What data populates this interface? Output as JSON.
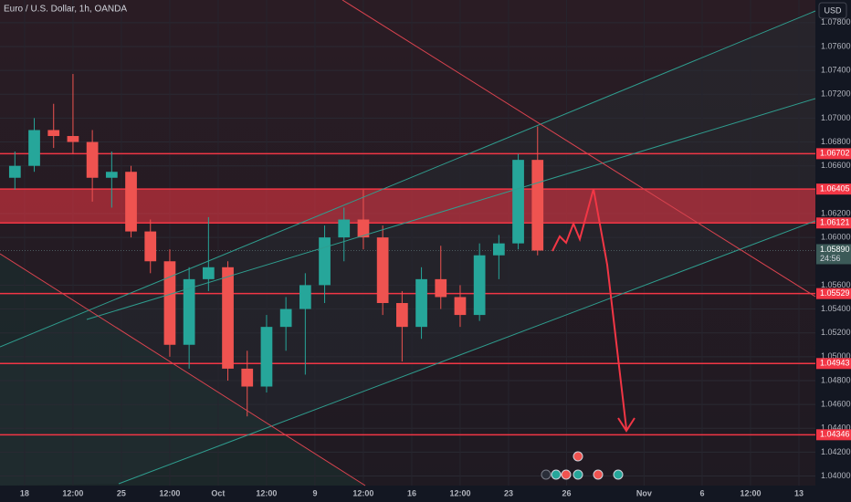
{
  "chart_data": {
    "type": "candlestick",
    "title": "Euro / U.S. Dollar, 1h, OANDA",
    "currency": "USD",
    "x": [
      -0.5,
      0.5,
      1.5,
      2.5,
      3.5,
      4.5,
      5.5,
      6.5,
      7.5,
      8.5,
      9.5,
      10.5,
      11.5,
      12.5,
      13.5,
      14.5,
      15.5,
      16.5,
      17.5,
      18.5,
      19.5,
      20.5,
      21.5,
      22.5,
      23.5,
      24.5,
      25.5,
      26.5
    ],
    "open": [
      1.065,
      1.066,
      1.069,
      1.0685,
      1.068,
      1.065,
      1.0655,
      1.0605,
      1.058,
      1.051,
      1.0565,
      1.0575,
      1.049,
      1.0475,
      1.0525,
      1.054,
      1.056,
      1.06,
      1.0615,
      1.06,
      1.0545,
      1.0525,
      1.0565,
      1.055,
      1.0535,
      1.0585,
      1.0595,
      1.0665
    ],
    "high": [
      1.0672,
      1.07,
      1.0712,
      1.0737,
      1.069,
      1.0672,
      1.066,
      1.0615,
      1.059,
      1.0575,
      1.0617,
      1.058,
      1.0505,
      1.0535,
      1.055,
      1.057,
      1.061,
      1.0625,
      1.064,
      1.061,
      1.0555,
      1.0575,
      1.0593,
      1.056,
      1.0595,
      1.0602,
      1.067,
      1.0693
    ],
    "low": [
      1.064,
      1.0655,
      1.0675,
      1.067,
      1.063,
      1.0625,
      1.06,
      1.057,
      1.05,
      1.049,
      1.0555,
      1.048,
      1.045,
      1.047,
      1.0505,
      1.0485,
      1.0545,
      1.058,
      1.059,
      1.0535,
      1.0496,
      1.0515,
      1.054,
      1.0525,
      1.053,
      1.0565,
      1.059,
      1.0585
    ],
    "close": [
      1.066,
      1.069,
      1.0685,
      1.068,
      1.065,
      1.0655,
      1.0605,
      1.058,
      1.051,
      1.0565,
      1.0575,
      1.049,
      1.0475,
      1.0525,
      1.054,
      1.056,
      1.06,
      1.0615,
      1.06,
      1.0545,
      1.0525,
      1.0565,
      1.055,
      1.0535,
      1.0585,
      1.0595,
      1.0665,
      1.0589
    ],
    "up_color": "#26a69a",
    "down_color": "#ef5350",
    "xlim": [
      -1.27,
      40.85
    ],
    "ylim": [
      1.0392,
      1.0799
    ],
    "xticks": [
      {
        "value": 0,
        "label": "18"
      },
      {
        "value": 2.5,
        "label": "12:00"
      },
      {
        "value": 5,
        "label": "25"
      },
      {
        "value": 7.5,
        "label": "12:00"
      },
      {
        "value": 10,
        "label": "Oct"
      },
      {
        "value": 12.5,
        "label": "12:00"
      },
      {
        "value": 15,
        "label": "9"
      },
      {
        "value": 17.5,
        "label": "12:00"
      },
      {
        "value": 20,
        "label": "16"
      },
      {
        "value": 22.5,
        "label": "12:00"
      },
      {
        "value": 25,
        "label": "23"
      },
      {
        "value": 28,
        "label": "26"
      },
      {
        "value": 32,
        "label": "Nov"
      },
      {
        "value": 35,
        "label": "6"
      },
      {
        "value": 37.5,
        "label": "12:00"
      },
      {
        "value": 40,
        "label": "13"
      }
    ],
    "yticks": [
      {
        "value": 1.078,
        "label": "1.07800"
      },
      {
        "value": 1.076,
        "label": "1.07600"
      },
      {
        "value": 1.074,
        "label": "1.07400"
      },
      {
        "value": 1.072,
        "label": "1.07200"
      },
      {
        "value": 1.07,
        "label": "1.07000"
      },
      {
        "value": 1.068,
        "label": "1.06800"
      },
      {
        "value": 1.066,
        "label": "1.06600"
      },
      {
        "value": 1.062,
        "label": "1.06200"
      },
      {
        "value": 1.06,
        "label": "1.06000"
      },
      {
        "value": 1.056,
        "label": "1.05600"
      },
      {
        "value": 1.054,
        "label": "1.05400"
      },
      {
        "value": 1.052,
        "label": "1.05200"
      },
      {
        "value": 1.05,
        "label": "1.05000"
      },
      {
        "value": 1.048,
        "label": "1.04800"
      },
      {
        "value": 1.046,
        "label": "1.04600"
      },
      {
        "value": 1.044,
        "label": "1.04400"
      },
      {
        "value": 1.042,
        "label": "1.04200"
      },
      {
        "value": 1.04,
        "label": "1.04000"
      }
    ],
    "levels": [
      {
        "value": 1.06702,
        "label": "1.06702"
      },
      {
        "value": 1.06405,
        "label": "1.06405"
      },
      {
        "value": 1.06121,
        "label": "1.06121"
      },
      {
        "value": 1.05529,
        "label": "1.05529"
      },
      {
        "value": 1.04943,
        "label": "1.04943"
      },
      {
        "value": 1.04346,
        "label": "1.04346"
      }
    ],
    "level_color": "#f23645",
    "zone": [
      1.06121,
      1.06405
    ],
    "last_price": {
      "value": 1.0589,
      "label": "1.05890"
    },
    "countdown": "24:56"
  }
}
